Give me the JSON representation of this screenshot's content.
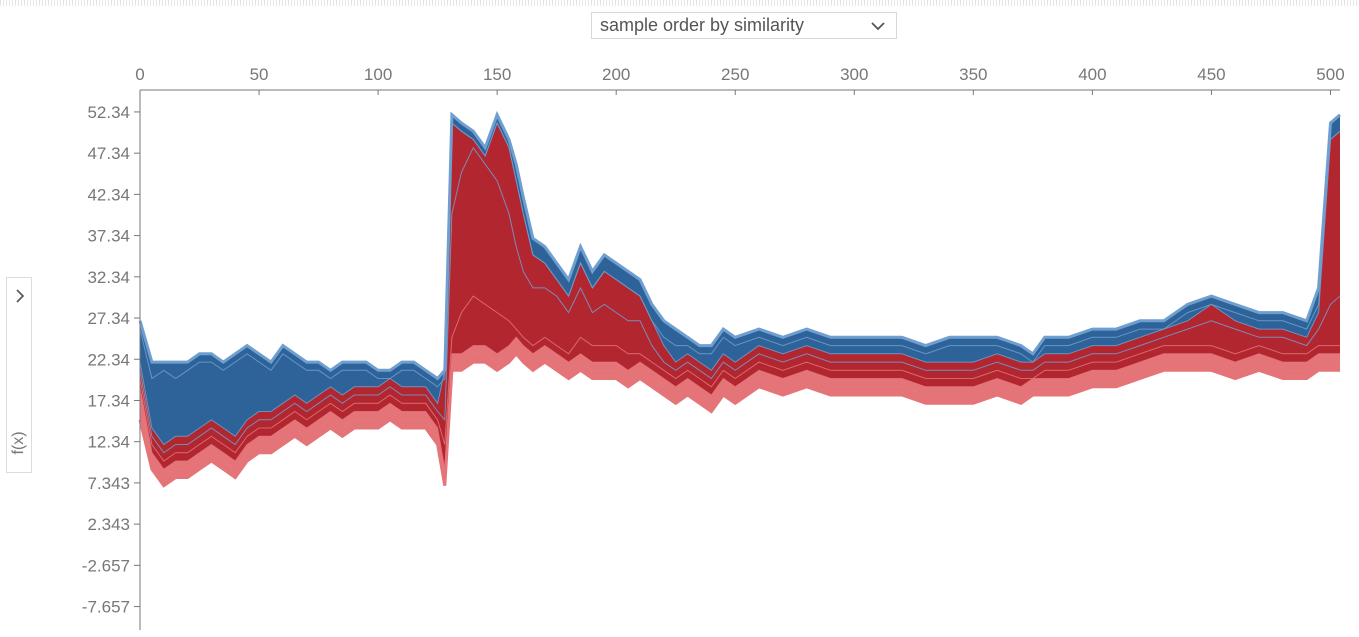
{
  "controls": {
    "order_select_label": "sample order by similarity",
    "order_select_icon": "chevron-down-icon",
    "side_toggle_icon": "chevron-right-icon"
  },
  "colors": {
    "blue_dark": "#2e6399",
    "blue_light": "#6f9fd0",
    "red_dark": "#b22630",
    "red_light": "#e57479",
    "axis": "#777777"
  },
  "chart_data": {
    "type": "area",
    "title": "",
    "xlabel": "",
    "ylabel": "f(x)",
    "xlim": [
      0,
      504
    ],
    "ylim": [
      -10.5,
      55
    ],
    "x_ticks": [
      0,
      50,
      100,
      150,
      200,
      250,
      300,
      350,
      400,
      450,
      500
    ],
    "x_tick_labels": [
      "0",
      "50",
      "100",
      "150",
      "200",
      "250",
      "300",
      "350",
      "400",
      "450",
      "500"
    ],
    "y_ticks": [
      52.34,
      47.34,
      42.34,
      37.34,
      32.34,
      27.34,
      22.34,
      17.34,
      12.34,
      7.343,
      2.343,
      -2.657,
      -7.657
    ],
    "y_tick_labels": [
      "52.34",
      "47.34",
      "42.34",
      "37.34",
      "32.34",
      "27.34",
      "22.34",
      "17.34",
      "12.34",
      "7.343",
      "2.343",
      "-2.657",
      "-7.657"
    ],
    "grid": false,
    "x": [
      0,
      5,
      10,
      15,
      20,
      25,
      30,
      35,
      40,
      45,
      50,
      55,
      60,
      65,
      70,
      75,
      80,
      85,
      90,
      95,
      100,
      105,
      110,
      115,
      120,
      125,
      128,
      131,
      135,
      140,
      145,
      150,
      155,
      158,
      161,
      165,
      170,
      175,
      180,
      185,
      190,
      195,
      200,
      205,
      210,
      215,
      220,
      225,
      230,
      235,
      240,
      245,
      250,
      260,
      270,
      280,
      290,
      300,
      310,
      320,
      330,
      340,
      350,
      360,
      370,
      375,
      380,
      390,
      400,
      410,
      420,
      430,
      440,
      450,
      460,
      470,
      480,
      490,
      495,
      500,
      504
    ],
    "series": [
      {
        "name": "",
        "values": [
          15,
          9,
          7,
          8,
          8,
          9,
          10,
          9,
          8,
          10,
          11,
          11,
          12,
          13,
          12,
          13,
          14,
          13,
          14,
          14,
          14,
          15,
          14,
          14,
          14,
          12,
          7,
          21,
          21,
          22,
          22,
          21,
          22,
          23,
          22,
          21,
          22,
          21,
          20,
          21,
          20,
          20,
          20,
          19,
          20,
          19,
          18,
          17,
          18,
          17,
          16,
          18,
          17,
          19,
          18,
          19,
          18,
          18,
          18,
          18,
          17,
          17,
          17,
          18,
          17,
          18,
          18,
          18,
          19,
          19,
          20,
          21,
          21,
          21,
          20,
          21,
          20,
          20,
          21,
          21,
          21
        ]
      },
      {
        "name": "",
        "values": [
          17,
          10,
          8,
          9,
          9,
          10,
          11,
          10,
          9,
          11,
          12,
          12,
          13,
          14,
          13,
          14,
          15,
          14,
          15,
          15,
          15,
          16,
          15,
          15,
          15,
          13,
          8,
          22,
          22,
          23,
          23,
          22,
          23,
          24,
          23,
          22,
          23,
          22,
          21,
          22,
          21,
          21,
          21,
          20,
          21,
          20,
          19,
          18,
          19,
          18,
          17,
          19,
          18,
          20,
          19,
          20,
          19,
          19,
          19,
          19,
          18,
          18,
          18,
          19,
          18,
          19,
          19,
          19,
          20,
          20,
          21,
          22,
          22,
          22,
          21,
          22,
          21,
          21,
          22,
          22,
          22
        ]
      },
      {
        "name": "",
        "values": [
          19,
          11,
          9,
          10,
          10,
          11,
          12,
          11,
          10,
          12,
          13,
          13,
          14,
          15,
          14,
          15,
          16,
          15,
          16,
          16,
          16,
          17,
          16,
          16,
          16,
          14,
          9,
          23,
          23,
          24,
          24,
          23,
          24,
          25,
          24,
          23,
          24,
          23,
          22,
          23,
          22,
          22,
          22,
          21,
          22,
          21,
          20,
          19,
          20,
          19,
          18,
          20,
          19,
          21,
          20,
          21,
          20,
          20,
          20,
          20,
          19,
          19,
          19,
          20,
          19,
          20,
          20,
          20,
          21,
          21,
          22,
          23,
          23,
          23,
          22,
          23,
          22,
          22,
          23,
          23,
          23
        ]
      },
      {
        "name": "",
        "values": [
          20,
          12,
          10,
          11,
          11,
          12,
          13,
          12,
          11,
          13,
          14,
          14,
          15,
          16,
          15,
          16,
          17,
          16,
          17,
          17,
          17,
          18,
          17,
          17,
          17,
          15,
          12,
          25,
          28,
          30,
          29,
          28,
          27,
          26,
          25,
          24,
          25,
          24,
          23,
          25,
          24,
          24,
          24,
          23,
          23,
          22,
          21,
          20,
          21,
          20,
          19,
          21,
          20,
          22,
          21,
          22,
          21,
          21,
          21,
          21,
          20,
          20,
          20,
          21,
          20,
          20,
          21,
          21,
          22,
          22,
          23,
          24,
          24,
          24,
          23,
          24,
          23,
          23,
          24,
          24,
          24
        ]
      },
      {
        "name": "",
        "values": [
          21,
          13,
          11,
          12,
          12,
          13,
          14,
          13,
          12,
          14,
          15,
          15,
          16,
          17,
          16,
          17,
          18,
          17,
          18,
          18,
          18,
          19,
          18,
          18,
          18,
          16,
          15,
          40,
          45,
          48,
          46,
          44,
          40,
          36,
          33,
          31,
          31,
          30,
          28,
          31,
          28,
          29,
          28,
          27,
          27,
          24,
          22,
          21,
          22,
          21,
          20,
          22,
          21,
          23,
          22,
          23,
          22,
          22,
          22,
          22,
          21,
          21,
          21,
          22,
          21,
          21,
          22,
          22,
          23,
          23,
          24,
          25,
          26,
          27,
          26,
          25,
          25,
          24,
          26,
          29,
          30
        ]
      },
      {
        "name": "",
        "values": [
          22,
          14,
          12,
          13,
          13,
          14,
          15,
          14,
          13,
          15,
          16,
          16,
          17,
          18,
          17,
          18,
          19,
          18,
          19,
          19,
          19,
          20,
          19,
          19,
          19,
          17,
          21,
          51,
          50,
          49,
          47,
          51,
          48,
          44,
          40,
          35,
          34,
          32,
          30,
          34,
          31,
          33,
          32,
          31,
          30,
          27,
          24,
          22,
          23,
          22,
          21,
          23,
          22,
          24,
          23,
          24,
          23,
          23,
          23,
          23,
          22,
          22,
          22,
          23,
          22,
          22,
          23,
          23,
          24,
          24,
          25,
          26,
          27,
          29,
          27,
          26,
          26,
          25,
          28,
          49,
          50
        ]
      },
      {
        "name": "",
        "values": [
          26,
          20,
          21,
          20,
          21,
          22,
          22,
          21,
          22,
          23,
          22,
          21,
          23,
          22,
          21,
          21,
          20,
          21,
          21,
          21,
          20,
          20,
          21,
          21,
          20,
          19,
          20,
          51,
          50,
          49,
          47,
          51,
          48,
          44,
          40,
          35,
          34,
          32,
          30,
          34,
          31,
          33,
          32,
          31,
          30,
          27,
          25,
          24,
          24,
          23,
          23,
          25,
          24,
          25,
          24,
          25,
          24,
          24,
          24,
          24,
          23,
          24,
          24,
          24,
          23,
          22,
          24,
          24,
          25,
          25,
          26,
          26,
          28,
          29,
          28,
          27,
          27,
          26,
          29,
          49,
          50
        ]
      },
      {
        "name": "",
        "values": [
          27,
          22,
          22,
          22,
          22,
          23,
          23,
          22,
          23,
          24,
          23,
          22,
          24,
          23,
          22,
          22,
          21,
          22,
          22,
          22,
          21,
          21,
          22,
          22,
          21,
          20,
          21,
          52,
          51,
          50,
          48,
          52,
          49,
          46,
          42,
          37,
          36,
          34,
          32,
          36,
          33,
          35,
          34,
          33,
          32,
          29,
          27,
          26,
          25,
          24,
          24,
          26,
          25,
          26,
          25,
          26,
          25,
          25,
          25,
          25,
          24,
          25,
          25,
          25,
          24,
          23,
          25,
          25,
          26,
          26,
          27,
          27,
          29,
          30,
          29,
          28,
          28,
          27,
          31,
          51,
          52
        ]
      }
    ]
  }
}
